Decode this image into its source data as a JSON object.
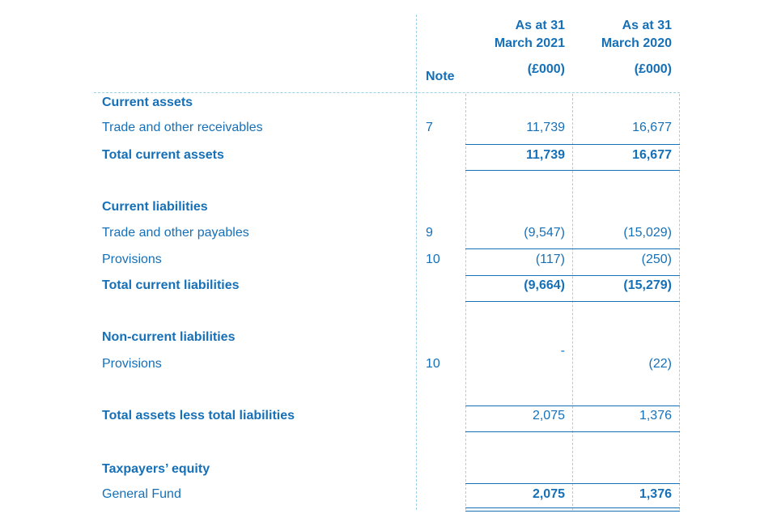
{
  "header": {
    "note": "Note",
    "col1": {
      "line1": "As at 31",
      "line2": "March 2021",
      "unit": "(£000)"
    },
    "col2": {
      "line1": "As at 31",
      "line2": "March 2020",
      "unit": "(£000)"
    }
  },
  "rows": {
    "current_assets": {
      "label": "Current assets"
    },
    "trade_receivables": {
      "label": "Trade and other receivables",
      "note": "7",
      "v2021": "11,739",
      "v2020": "16,677"
    },
    "total_current_assets": {
      "label": "Total current assets",
      "v2021": "11,739",
      "v2020": "16,677"
    },
    "current_liabilities": {
      "label": "Current liabilities"
    },
    "trade_payables": {
      "label": "Trade and other payables",
      "note": "9",
      "v2021": "(9,547)",
      "v2020": "(15,029)"
    },
    "provisions_current": {
      "label": "Provisions",
      "note": "10",
      "v2021": "(117)",
      "v2020": "(250)"
    },
    "total_current_liabilities": {
      "label": "Total current liabilities",
      "v2021": "(9,664)",
      "v2020": "(15,279)"
    },
    "non_current_liabilities": {
      "label": "Non-current liabilities"
    },
    "provisions_noncurrent": {
      "label": "Provisions",
      "note": "10",
      "v2021": "-",
      "v2020": "(22)"
    },
    "total_assets_less_liabilities": {
      "label": "Total assets less total liabilities",
      "v2021": "2,075",
      "v2020": "1,376"
    },
    "taxpayers_equity": {
      "label": "Taxpayers’ equity"
    },
    "general_fund": {
      "label": "General Fund",
      "v2021": "2,075",
      "v2020": "1,376"
    }
  },
  "colors": {
    "text": "#1570b8",
    "guide": "#9fd0e6",
    "rule": "#1570b8"
  }
}
